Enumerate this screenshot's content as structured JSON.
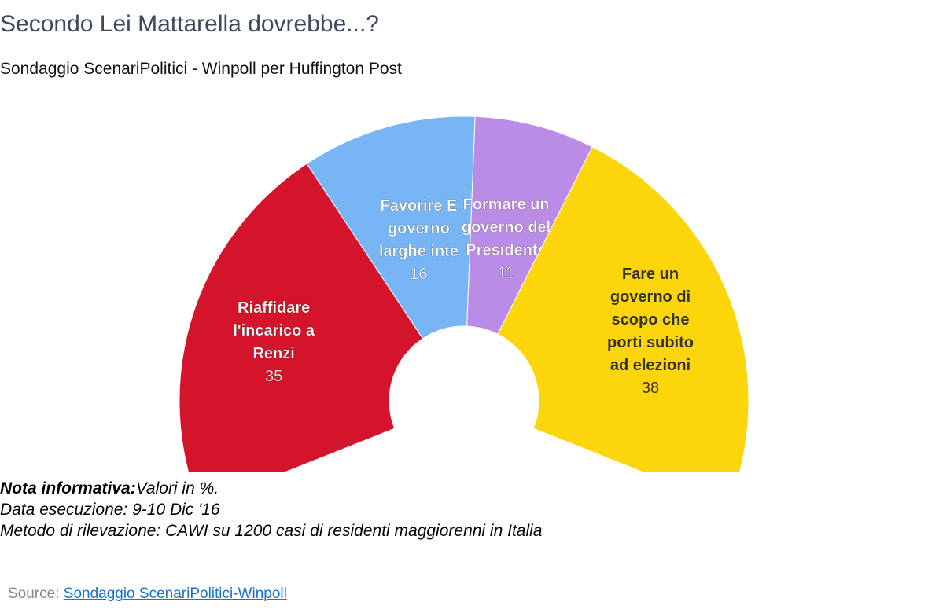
{
  "header": {
    "title": "Secondo Lei Mattarella dovrebbe...?",
    "subtitle": "Sondaggio ScenariPolitici - Winpoll per Huffington Post"
  },
  "chart_data": {
    "type": "pie",
    "variant": "semi-donut",
    "categories": [
      "Riaffidare l'incarico a Renzi",
      "Favorire un governo di larghe intese",
      "Formare un governo del Presidente",
      "Fare un governo di scopo che porti subito ad elezioni"
    ],
    "display_labels": [
      [
        "Riaffidare",
        "l'incarico a",
        "Renzi"
      ],
      [
        "Favorire E",
        "governo",
        "larghe inte"
      ],
      [
        "Formare un",
        "governo del",
        "Presidente"
      ],
      [
        "Fare un",
        "governo di",
        "scopo che",
        "porti subito",
        "ad elezioni"
      ]
    ],
    "values": [
      35,
      16,
      11,
      38
    ],
    "colors": [
      "#d3142b",
      "#77b5f4",
      "#bb8be8",
      "#fcd60a"
    ],
    "label_colors": [
      "#ffffff",
      "#ffffff",
      "#ffffff",
      "#333333"
    ],
    "legend": "none"
  },
  "notes": {
    "label": "Nota informativa:",
    "line1": "Valori in %.",
    "line2": "Data esecuzione: 9-10 Dic '16",
    "line3": "Metodo di rilevazione: CAWI su 1200 casi di residenti maggiorenni in Italia"
  },
  "source": {
    "prefix": "Source: ",
    "link_text": "Sondaggio ScenariPolitici-Winpoll"
  }
}
